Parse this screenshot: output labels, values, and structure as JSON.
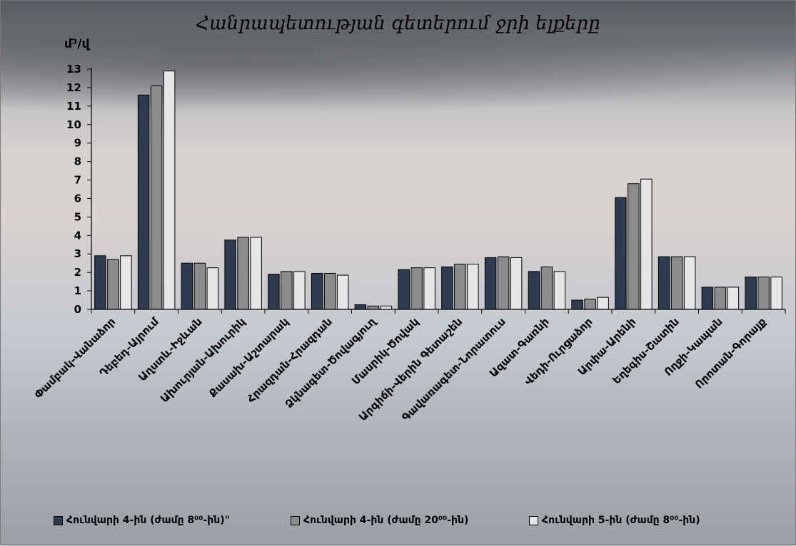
{
  "chart_data": {
    "type": "bar",
    "title": "Հանրապետության գետերում ջրի ելքերը",
    "ylabel": "մ³/վ",
    "ylim": [
      0,
      13
    ],
    "yticks": [
      "0",
      "1",
      "2",
      "3",
      "4",
      "5",
      "6",
      "7",
      "8",
      "9",
      "10",
      "11",
      "12",
      "13"
    ],
    "grid": false,
    "legend": "bottom",
    "categories": [
      "Փամբակ-Վանաձոր",
      "Դեբեդ-Այրում",
      "Աղստև-Իջևան",
      "Ախուրյան-Ախուրիկ",
      "Քասախ-Աշտարակ",
      "Հրազդան-Հրազդան",
      "Ձկնագետ-Ծովագյուղ",
      "Մասրիկ-Ծովակ",
      "Արգիճի-Վերին Գետաշեն",
      "Գավառագետ-Նորատուս",
      "Ազատ-Գառնի",
      "Վեդի-Ուրցաձոր",
      "Արփա-Արենի",
      "Եղեգիս-Շատին",
      "Ողջի-Կապան",
      "Որոտան-Գորայք"
    ],
    "series": [
      {
        "name": "Հունվարի 4-ին (ժամը 8⁰⁰-ին)\"",
        "color": "#2f3b4e",
        "values": [
          2.9,
          11.6,
          2.5,
          3.75,
          1.9,
          1.95,
          0.25,
          2.15,
          2.3,
          2.8,
          2.05,
          0.5,
          6.05,
          2.85,
          1.2,
          1.75
        ]
      },
      {
        "name": "Հունվարի 4-ին (ժամը 20⁰⁰-ին)",
        "color": "#8c8c8c",
        "values": [
          2.7,
          12.1,
          2.5,
          3.9,
          2.05,
          1.95,
          0.18,
          2.25,
          2.45,
          2.85,
          2.3,
          0.55,
          6.8,
          2.85,
          1.2,
          1.75
        ]
      },
      {
        "name": "Հունվարի 5-ին (ժամը 8⁰⁰-ին)",
        "color": "#e6e6e6",
        "values": [
          2.9,
          12.9,
          2.25,
          3.9,
          2.05,
          1.85,
          0.18,
          2.25,
          2.45,
          2.8,
          2.05,
          0.65,
          7.05,
          2.85,
          1.2,
          1.75
        ]
      }
    ]
  }
}
